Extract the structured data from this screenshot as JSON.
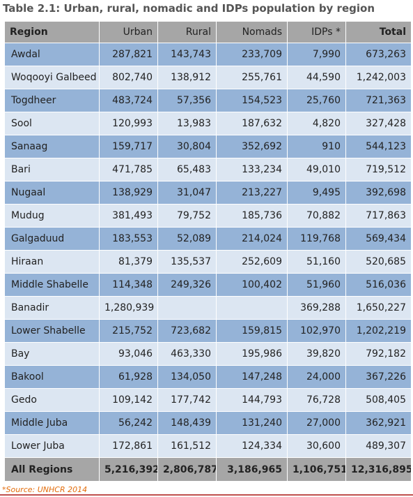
{
  "title": "Table 2.1: Urban, rural, nomadic and IDPs population by region",
  "columns": [
    "Region",
    "Urban",
    "Rural",
    "Nomads",
    "IDPs *",
    "Total"
  ],
  "rows": [
    {
      "region": "Awdal",
      "urban": "287,821",
      "rural": "143,743",
      "nomads": "233,709",
      "idps": "7,990",
      "total": "673,263"
    },
    {
      "region": "Woqooyi Galbeed",
      "urban": "802,740",
      "rural": "138,912",
      "nomads": "255,761",
      "idps": "44,590",
      "total": "1,242,003"
    },
    {
      "region": "Togdheer",
      "urban": "483,724",
      "rural": "57,356",
      "nomads": "154,523",
      "idps": "25,760",
      "total": "721,363"
    },
    {
      "region": "Sool",
      "urban": "120,993",
      "rural": "13,983",
      "nomads": "187,632",
      "idps": "4,820",
      "total": "327,428"
    },
    {
      "region": "Sanaag",
      "urban": "159,717",
      "rural": "30,804",
      "nomads": "352,692",
      "idps": "910",
      "total": "544,123"
    },
    {
      "region": "Bari",
      "urban": "471,785",
      "rural": "65,483",
      "nomads": "133,234",
      "idps": "49,010",
      "total": "719,512"
    },
    {
      "region": "Nugaal",
      "urban": "138,929",
      "rural": "31,047",
      "nomads": "213,227",
      "idps": "9,495",
      "total": "392,698"
    },
    {
      "region": "Mudug",
      "urban": "381,493",
      "rural": "79,752",
      "nomads": "185,736",
      "idps": "70,882",
      "total": "717,863"
    },
    {
      "region": "Galgaduud",
      "urban": "183,553",
      "rural": "52,089",
      "nomads": "214,024",
      "idps": "119,768",
      "total": "569,434"
    },
    {
      "region": "Hiraan",
      "urban": "81,379",
      "rural": "135,537",
      "nomads": "252,609",
      "idps": "51,160",
      "total": "520,685"
    },
    {
      "region": "Middle Shabelle",
      "urban": "114,348",
      "rural": "249,326",
      "nomads": "100,402",
      "idps": "51,960",
      "total": "516,036"
    },
    {
      "region": "Banadir",
      "urban": "1,280,939",
      "rural": "",
      "nomads": "",
      "idps": "369,288",
      "total": "1,650,227"
    },
    {
      "region": "Lower Shabelle",
      "urban": "215,752",
      "rural": "723,682",
      "nomads": "159,815",
      "idps": "102,970",
      "total": "1,202,219"
    },
    {
      "region": "Bay",
      "urban": "93,046",
      "rural": "463,330",
      "nomads": "195,986",
      "idps": "39,820",
      "total": "792,182"
    },
    {
      "region": "Bakool",
      "urban": "61,928",
      "rural": "134,050",
      "nomads": "147,248",
      "idps": "24,000",
      "total": "367,226"
    },
    {
      "region": "Gedo",
      "urban": "109,142",
      "rural": "177,742",
      "nomads": "144,793",
      "idps": "76,728",
      "total": "508,405"
    },
    {
      "region": "Middle Juba",
      "urban": "56,242",
      "rural": "148,439",
      "nomads": "131,240",
      "idps": "27,000",
      "total": "362,921"
    },
    {
      "region": "Lower Juba",
      "urban": "172,861",
      "rural": "161,512",
      "nomads": "124,334",
      "idps": "30,600",
      "total": "489,307"
    }
  ],
  "totals": {
    "region": "All Regions",
    "urban": "5,216,392",
    "rural": "2,806,787",
    "nomads": "3,186,965",
    "idps": "1,106,751",
    "total": "12,316,895"
  },
  "source": "*Source: UNHCR 2014",
  "colors": {
    "header": "#a6a6a6",
    "row_dark": "#95b3d7",
    "row_light": "#dce6f2",
    "source_text": "#e36c0a",
    "rule": "#c0504d"
  }
}
